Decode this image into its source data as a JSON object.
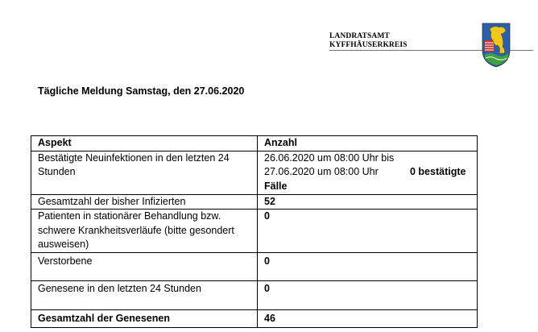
{
  "header": {
    "org_line1": "LANDRATSAMT",
    "org_line2": "KYFFHÄUSERKREIS",
    "logo": "coat-of-arms-kyffhaeuserkreis"
  },
  "title": "Tägliche Meldung Samstag, den 27.06.2020",
  "table": {
    "headers": [
      "Aspekt",
      "Anzahl"
    ],
    "rows": [
      {
        "aspect": "Bestätigte Neuinfektionen in den letzten 24 Stunden",
        "value_line1": "26.06.2020 um 08:00 Uhr bis",
        "value_line2": "27.06.2020 um 08:00 Uhr",
        "value_bold": "0 bestätigte Fälle"
      },
      {
        "aspect": "Gesamtzahl der bisher Infizierten",
        "value": "52"
      },
      {
        "aspect": "Patienten in stationärer Behandlung bzw. schwere Krankheitsverläufe (bitte gesondert ausweisen)",
        "value": "0"
      },
      {
        "aspect": "Verstorbene",
        "value": "0"
      },
      {
        "aspect": "Genesene in den letzten 24 Stunden",
        "value": "0"
      },
      {
        "aspect": "Gesamtzahl der Genesenen",
        "value": "46"
      }
    ]
  }
}
